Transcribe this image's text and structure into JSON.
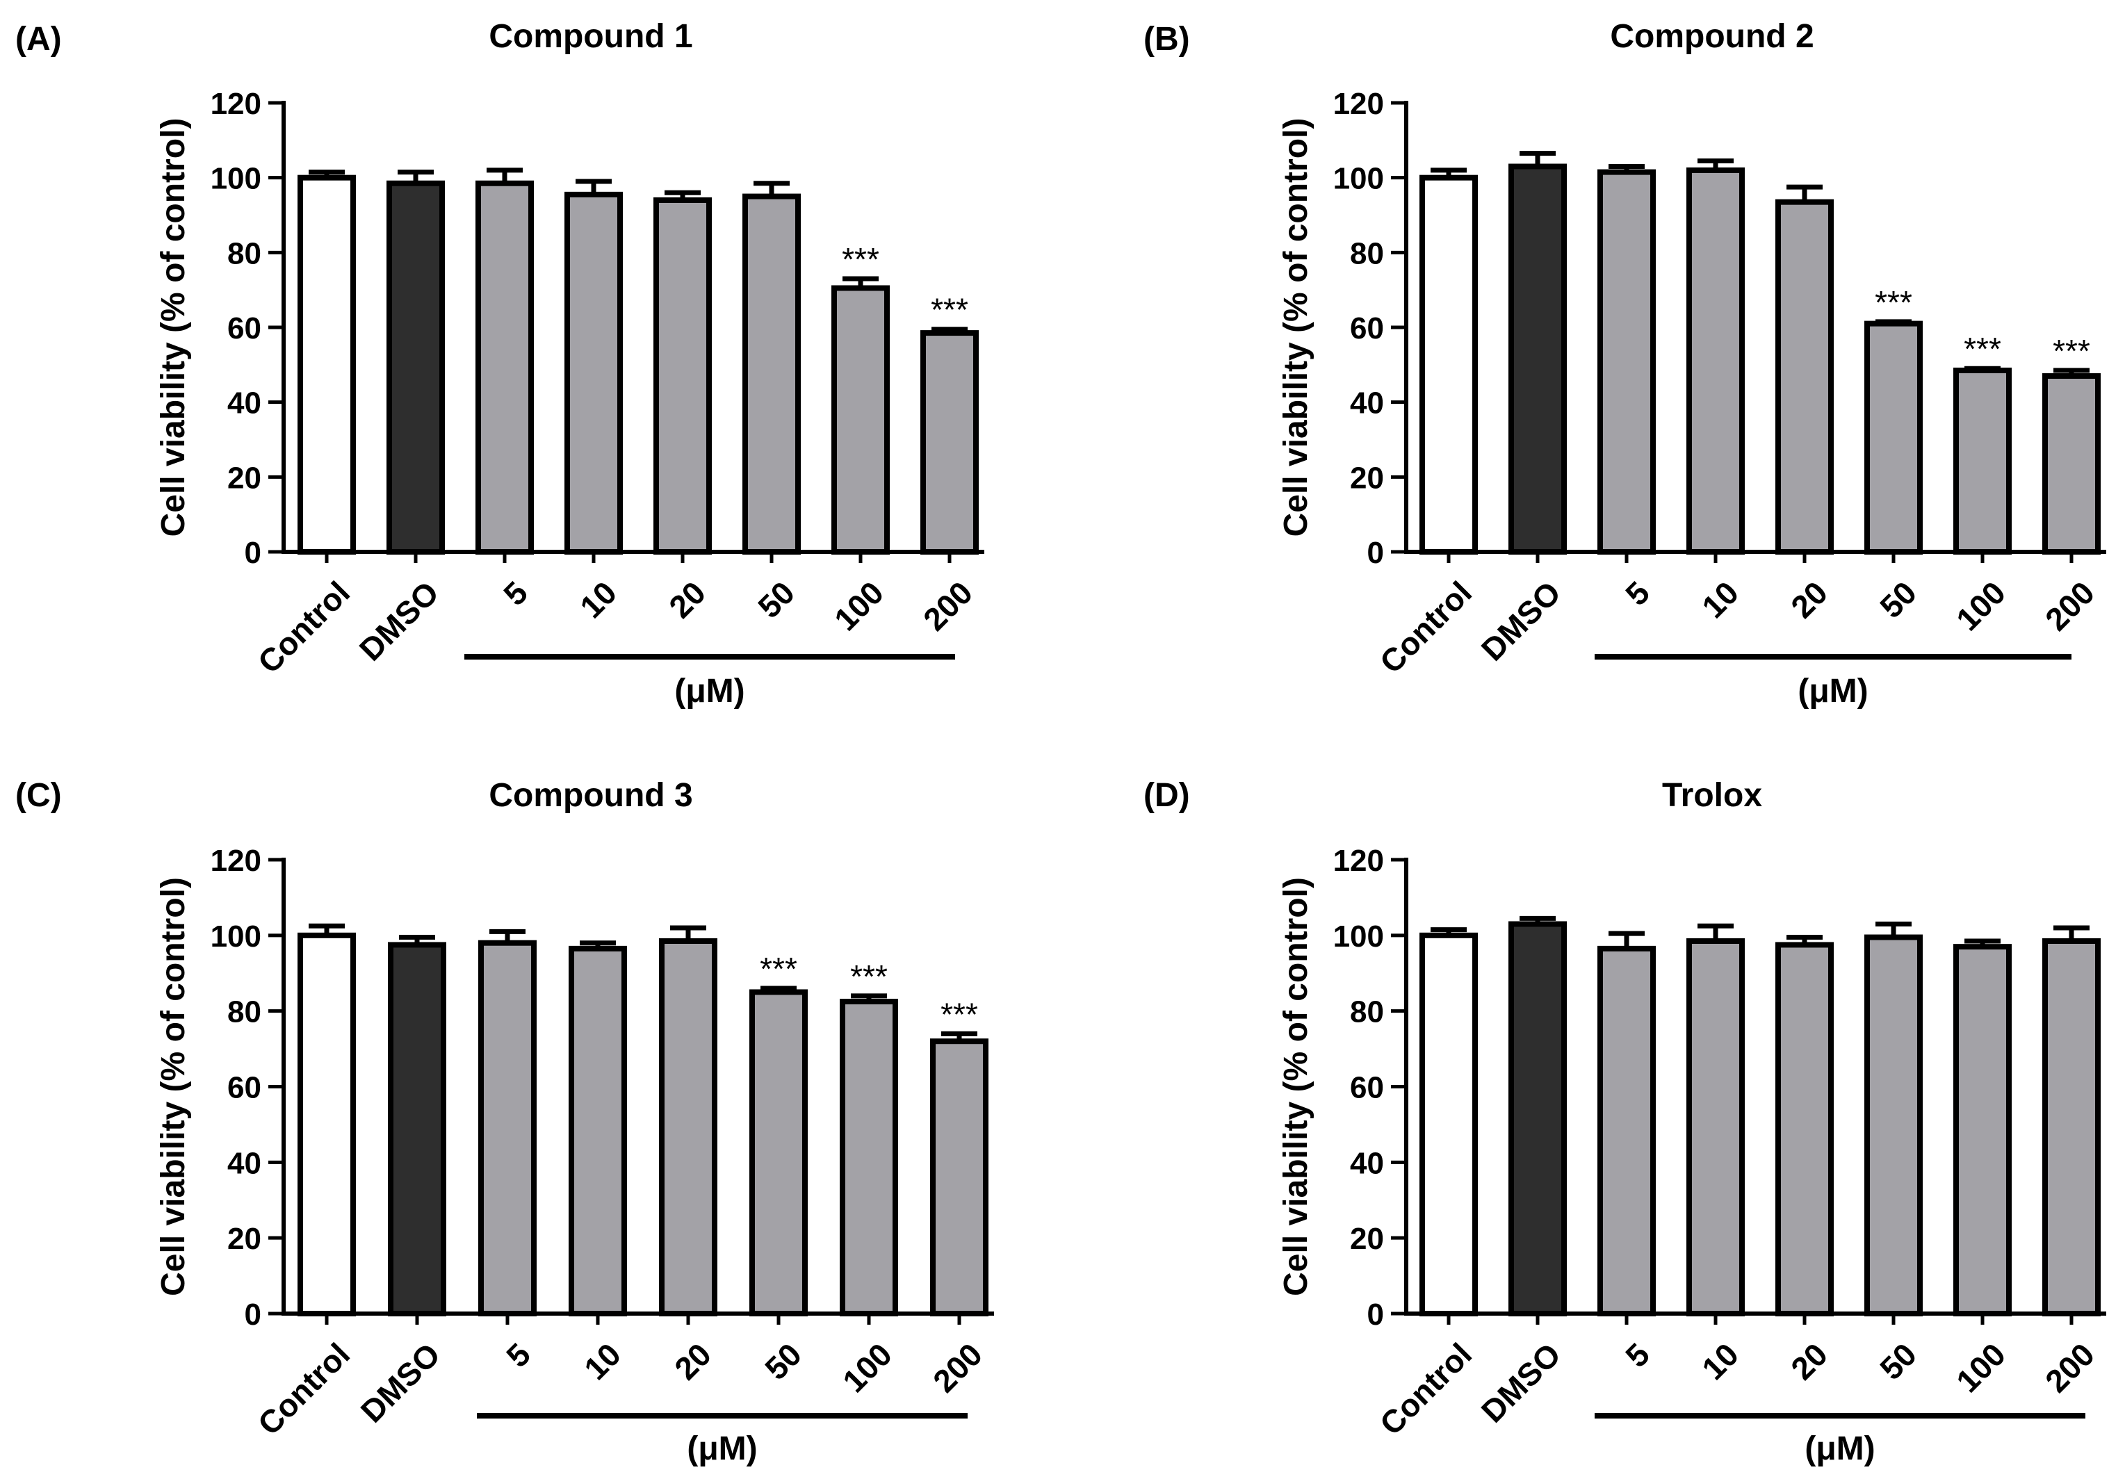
{
  "figure": {
    "ylabel": "Cell viability (% of control)",
    "unit_label": "(μM)"
  },
  "colors": {
    "control": "#ffffff",
    "dmso": "#2e2e2e",
    "treatment": "#a3a2a7",
    "stroke": "#000000"
  },
  "chart_data": [
    {
      "type": "bar",
      "panel": "(A)",
      "title": "Compound 1",
      "ylabel": "Cell viability (% of control)",
      "xlabel": "(μM)",
      "ylim": [
        0,
        120
      ],
      "yticks": [
        0,
        20,
        40,
        60,
        80,
        100,
        120
      ],
      "categories": [
        "Control",
        "DMSO",
        "5",
        "10",
        "20",
        "50",
        "100",
        "200"
      ],
      "values": [
        100,
        98.5,
        98.5,
        95.5,
        94,
        95,
        70.5,
        58.5
      ],
      "errors": [
        1.5,
        3,
        3.5,
        3.5,
        2,
        3.5,
        2.5,
        1
      ],
      "significance": [
        "",
        "",
        "",
        "",
        "",
        "",
        "***",
        "***"
      ]
    },
    {
      "type": "bar",
      "panel": "(B)",
      "title": "Compound 2",
      "ylabel": "Cell viability (% of control)",
      "xlabel": "(μM)",
      "ylim": [
        0,
        120
      ],
      "yticks": [
        0,
        20,
        40,
        60,
        80,
        100,
        120
      ],
      "categories": [
        "Control",
        "DMSO",
        "5",
        "10",
        "20",
        "50",
        "100",
        "200"
      ],
      "values": [
        100,
        103,
        101.5,
        102,
        93.5,
        61,
        48.5,
        47
      ],
      "errors": [
        2,
        3.5,
        1.5,
        2.5,
        4,
        0.5,
        0.5,
        1.5
      ],
      "significance": [
        "",
        "",
        "",
        "",
        "",
        "***",
        "***",
        "***"
      ]
    },
    {
      "type": "bar",
      "panel": "(C)",
      "title": "Compound 3",
      "ylabel": "Cell viability (% of control)",
      "xlabel": "(μM)",
      "ylim": [
        0,
        120
      ],
      "yticks": [
        0,
        20,
        40,
        60,
        80,
        100,
        120
      ],
      "categories": [
        "Control",
        "DMSO",
        "5",
        "10",
        "20",
        "50",
        "100",
        "200"
      ],
      "values": [
        100,
        97.5,
        98,
        96.5,
        98.5,
        85,
        82.5,
        72
      ],
      "errors": [
        2.5,
        2,
        3,
        1.5,
        3.5,
        1,
        1.5,
        2
      ],
      "significance": [
        "",
        "",
        "",
        "",
        "",
        "***",
        "***",
        "***"
      ]
    },
    {
      "type": "bar",
      "panel": "(D)",
      "title": "Trolox",
      "ylabel": "Cell viability (% of control)",
      "xlabel": "(μM)",
      "ylim": [
        0,
        120
      ],
      "yticks": [
        0,
        20,
        40,
        60,
        80,
        100,
        120
      ],
      "categories": [
        "Control",
        "DMSO",
        "5",
        "10",
        "20",
        "50",
        "100",
        "200"
      ],
      "values": [
        100,
        103,
        96.5,
        98.5,
        97.5,
        99.5,
        97,
        98.5
      ],
      "errors": [
        1.5,
        1.5,
        4,
        4,
        2,
        3.5,
        1.5,
        3.5
      ],
      "significance": [
        "",
        "",
        "",
        "",
        "",
        "",
        "",
        ""
      ]
    }
  ]
}
